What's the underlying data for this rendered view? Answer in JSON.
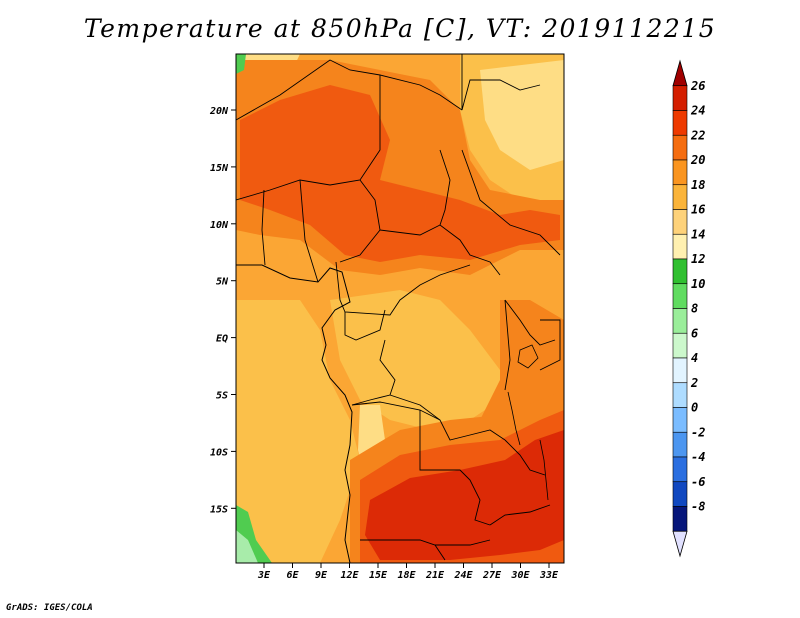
{
  "title": "Temperature at 850hPa [C], VT: 2019112215",
  "credit": "GrADS: IGES/COLA",
  "lat_labels": [
    "20N",
    "15N",
    "10N",
    "5N",
    "EQ",
    "5S",
    "10S",
    "15S"
  ],
  "lon_labels": [
    "3E",
    "6E",
    "9E",
    "12E",
    "15E",
    "18E",
    "21E",
    "24E",
    "27E",
    "30E",
    "33E"
  ],
  "colorbar": {
    "levels": [
      "26",
      "24",
      "22",
      "20",
      "18",
      "16",
      "14",
      "12",
      "10",
      "8",
      "6",
      "4",
      "2",
      "0",
      "-2",
      "-4",
      "-6",
      "-8"
    ],
    "colors": [
      "#a00000",
      "#d41e00",
      "#ee3a00",
      "#f56d10",
      "#fa9520",
      "#fbb43a",
      "#fed27a",
      "#fff0b0",
      "#30c030",
      "#60dc60",
      "#9aee9a",
      "#ccf8cc",
      "#e2f4ff",
      "#aedcff",
      "#7abcff",
      "#4c96f0",
      "#2a6ee0",
      "#1048c0",
      "#06167a",
      "#e1e1ff"
    ]
  },
  "map_colors": {
    "bg": "#fba634",
    "c18": "#fbc04a",
    "c16": "#fedd85",
    "c22": "#f5841c",
    "c24": "#f05a10",
    "c26": "#dc2a06",
    "green": "#50cc50",
    "lightgreen": "#a8ecaa",
    "lake": "#f5841c"
  }
}
